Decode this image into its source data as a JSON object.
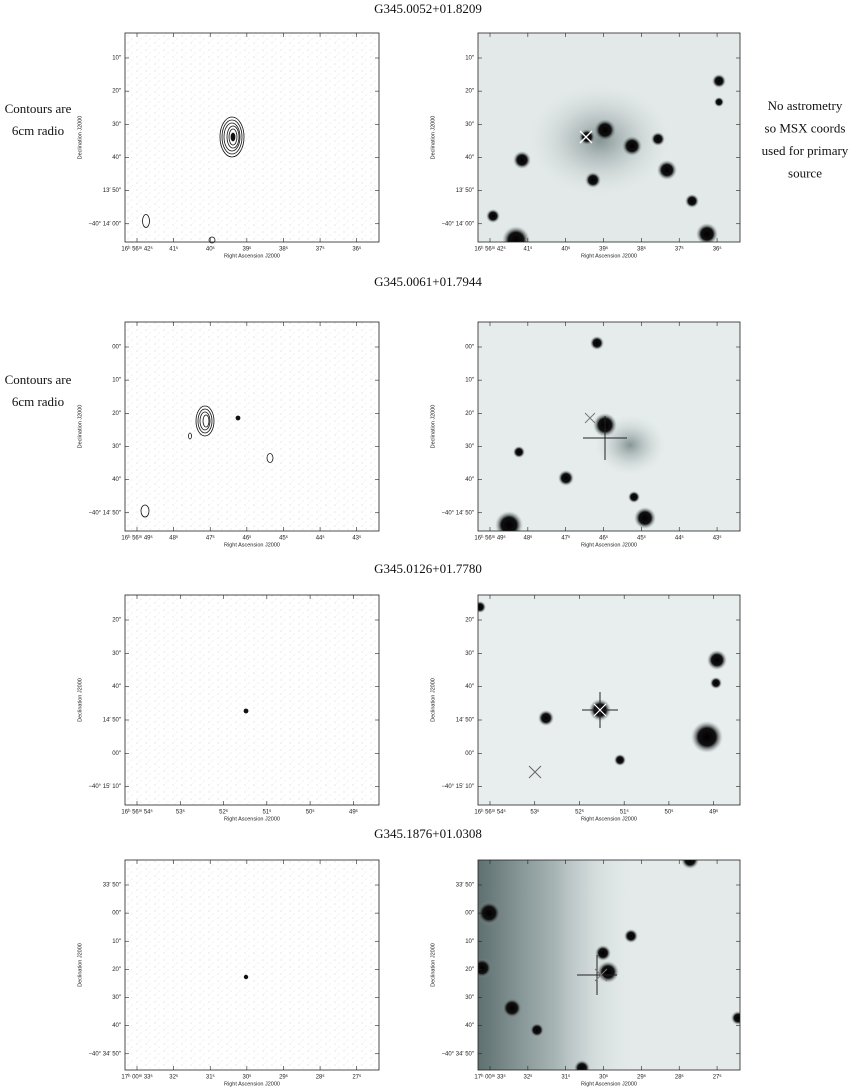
{
  "axes": {
    "x_label": "Right Ascension J2000",
    "y_label": "Declination J2000"
  },
  "panels": [
    {
      "title": "G345.0052+01.8209",
      "left_note": [
        "Contours are",
        "6cm radio"
      ],
      "right_note": [
        "No astrometry",
        "so MSX coords",
        "used for primary",
        "source"
      ],
      "xticks": [
        "16ʰ 56ᵐ 42ˢ",
        "41ˢ",
        "40ˢ",
        "39ˢ",
        "38ˢ",
        "37ˢ",
        "36ˢ"
      ],
      "yticks": [
        "10″",
        "20″",
        "30″",
        "40″",
        "13′ 50″",
        "−40° 14′ 00″"
      ]
    },
    {
      "title": "G345.0061+01.7944",
      "left_note": [
        "Contours are",
        "6cm radio"
      ],
      "xticks": [
        "16ʰ 56ᵐ 49ˢ",
        "48ˢ",
        "47ˢ",
        "46ˢ",
        "45ˢ",
        "44ˢ",
        "43ˢ"
      ],
      "yticks": [
        "00″",
        "10″",
        "20″",
        "30″",
        "40″",
        "−40° 14′ 50″"
      ]
    },
    {
      "title": "G345.0126+01.7780",
      "xticks": [
        "16ʰ 56ᵐ 54ˢ",
        "53ˢ",
        "52ˢ",
        "51ˢ",
        "50ˢ",
        "49ˢ"
      ],
      "yticks": [
        "20″",
        "30″",
        "40″",
        "14′ 50″",
        "00″",
        "−40° 15′ 10″"
      ]
    },
    {
      "title": "G345.1876+01.0308",
      "xticks": [
        "17ʰ 00ᵐ 33ˢ",
        "32ˢ",
        "31ˢ",
        "30ˢ",
        "29ˢ",
        "28ˢ",
        "27ˢ"
      ],
      "yticks": [
        "33′ 50″",
        "00″",
        "10″",
        "20″",
        "30″",
        "40″",
        "−40° 34′ 50″"
      ]
    }
  ]
}
